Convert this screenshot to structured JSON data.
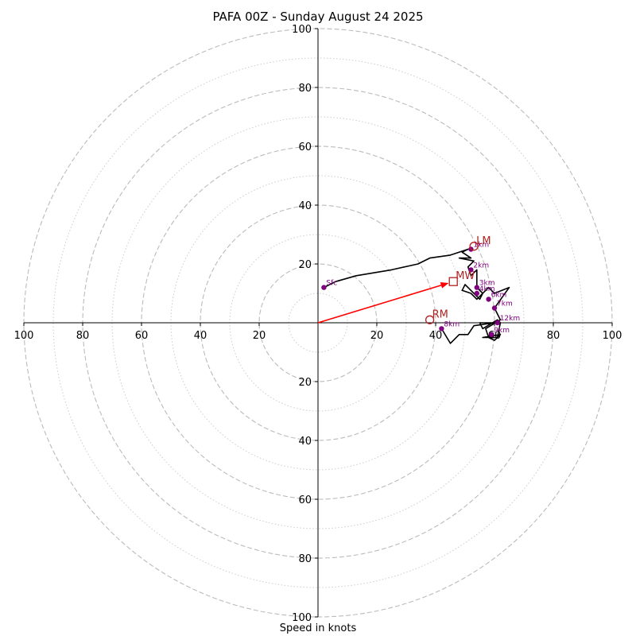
{
  "chart_data": {
    "type": "hodograph",
    "title": "PAFA 00Z - Sunday August 24 2025",
    "xlabel": "Speed in knots",
    "units": "knots",
    "range": [
      -100,
      100
    ],
    "ring_labels": [
      "100",
      "80",
      "60",
      "40",
      "20",
      "20",
      "40",
      "60",
      "80",
      "100"
    ],
    "major_rings": [
      20,
      40,
      60,
      80,
      100
    ],
    "minor_rings": [
      10,
      30,
      50,
      70,
      90
    ],
    "grid": true,
    "hodograph": {
      "u": [
        2,
        6,
        13,
        25,
        34,
        38,
        45,
        51,
        49,
        52,
        48,
        53,
        51,
        52,
        53,
        54,
        54,
        56,
        55,
        50,
        49,
        52,
        54,
        58,
        60,
        65,
        60,
        62,
        57,
        58,
        60,
        62,
        56,
        61,
        62,
        61,
        56,
        55,
        60,
        53,
        51,
        48,
        45,
        42,
        42
      ],
      "v": [
        12,
        14,
        16,
        18,
        20,
        22,
        23,
        25,
        24,
        22,
        22,
        21,
        19,
        16,
        17,
        18,
        12,
        10,
        8,
        13,
        11,
        10,
        8,
        12,
        10,
        12,
        5,
        1,
        -2,
        -5,
        -6,
        -4,
        -5,
        -5,
        0,
        1,
        -2,
        0,
        0,
        -1,
        -4,
        -4,
        -7,
        -2,
        -2
      ]
    },
    "height_markers": [
      {
        "label": "Sfc",
        "u": 2,
        "v": 12
      },
      {
        "label": "1km",
        "u": 52,
        "v": 25
      },
      {
        "label": "2km",
        "u": 52,
        "v": 18
      },
      {
        "label": "3km",
        "u": 54,
        "v": 12
      },
      {
        "label": "4km",
        "u": 54,
        "v": 10
      },
      {
        "label": "6km",
        "u": 58,
        "v": 8
      },
      {
        "label": "7km",
        "u": 60,
        "v": 5
      },
      {
        "label": "12km",
        "u": 61,
        "v": 0
      },
      {
        "label": "9km",
        "u": 59,
        "v": -4
      },
      {
        "label": "8km",
        "u": 42,
        "v": -2
      }
    ],
    "storm_motion": {
      "lm": {
        "label": "LM",
        "u": 53,
        "v": 26
      },
      "rm": {
        "label": "RM",
        "u": 38,
        "v": 1
      },
      "mw": {
        "label": "MW",
        "u": 46,
        "v": 14
      }
    },
    "colors": {
      "hodograph": "#000000",
      "markers": "#800080",
      "storm_motion": "#b22222",
      "vector": "#ff0000",
      "major_ring": "#bbbbbb",
      "minor_ring": "#cccccc"
    }
  }
}
